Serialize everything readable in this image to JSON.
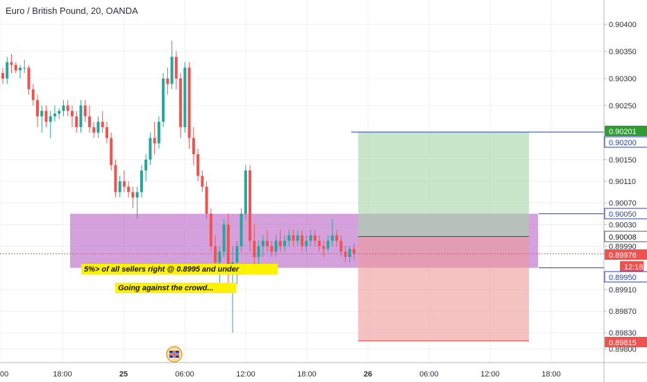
{
  "header": {
    "title": "Euro / British Pound, 20, OANDA"
  },
  "colors": {
    "up": "#26a69a",
    "down": "#ef5350",
    "zone_fill": "#ba68c8",
    "target_fill": "#a5d6a7",
    "stop_fill": "#ef9a9a",
    "level_line": "#1e3fbf",
    "grid": "#eceff3",
    "axis_text": "#2a2e39"
  },
  "chart_data": {
    "type": "candlestick",
    "title": "Euro / British Pound, 20, OANDA",
    "ylim": [
      0.89775,
      0.90445
    ],
    "x_ticks": [
      "00",
      "18:00",
      "25",
      "06:00",
      "12:00",
      "18:00",
      "26",
      "06:00",
      "12:00",
      "18:00"
    ],
    "y_ticks": [
      "0.90400",
      "0.90350",
      "0.90300",
      "0.90250",
      "0.90150",
      "0.90110",
      "0.90070",
      "0.90030",
      "0.89990",
      "0.89910",
      "0.89870",
      "0.89830",
      "0.89800"
    ],
    "price_labels": [
      {
        "text": "0.90201",
        "style": "green"
      },
      {
        "text": "0.90200",
        "style": "blue"
      },
      {
        "text": "0.90050",
        "style": "blue"
      },
      {
        "text": "0.90008",
        "style": "dark"
      },
      {
        "text": "0.89976",
        "style": "red"
      },
      {
        "text": "12:18",
        "style": "redtime"
      },
      {
        "text": "0.89950",
        "style": "blue"
      },
      {
        "text": "0.89815",
        "style": "red"
      }
    ],
    "price_label_values": [
      0.90201,
      0.902,
      0.9005,
      0.90008,
      0.89976,
      0.8995,
      0.89815
    ],
    "zone": {
      "low": 0.8995,
      "high": 0.9005,
      "label": "5%> of all sellers right @ 0.8995 and under"
    },
    "note": "Going against the crowd...",
    "position": {
      "entry": 0.90008,
      "target": 0.90201,
      "stop": 0.89815
    },
    "horizontal_levels": [
      0.90201,
      0.9005,
      0.8995
    ],
    "current_price": 0.89976,
    "candles": [
      [
        0.9031,
        0.9032,
        0.9029,
        0.903
      ],
      [
        0.903,
        0.9034,
        0.9029,
        0.9033
      ],
      [
        0.9033,
        0.90345,
        0.9031,
        0.90325
      ],
      [
        0.90325,
        0.9033,
        0.9031,
        0.90315
      ],
      [
        0.90315,
        0.90325,
        0.903,
        0.9032
      ],
      [
        0.9032,
        0.90335,
        0.9031,
        0.9032
      ],
      [
        0.9032,
        0.90325,
        0.9027,
        0.9028
      ],
      [
        0.9028,
        0.9029,
        0.9025,
        0.9026
      ],
      [
        0.9026,
        0.9027,
        0.9021,
        0.9023
      ],
      [
        0.9023,
        0.9025,
        0.902,
        0.9024
      ],
      [
        0.9024,
        0.9025,
        0.9021,
        0.9022
      ],
      [
        0.9022,
        0.9024,
        0.9019,
        0.9023
      ],
      [
        0.9023,
        0.9025,
        0.9022,
        0.90235
      ],
      [
        0.90235,
        0.90245,
        0.90225,
        0.9024
      ],
      [
        0.9024,
        0.9026,
        0.9023,
        0.9025
      ],
      [
        0.9025,
        0.9026,
        0.9023,
        0.9024
      ],
      [
        0.9024,
        0.9025,
        0.9021,
        0.9023
      ],
      [
        0.9023,
        0.9024,
        0.902,
        0.9021
      ],
      [
        0.9021,
        0.9026,
        0.902,
        0.9025
      ],
      [
        0.9025,
        0.9026,
        0.9022,
        0.9023
      ],
      [
        0.9023,
        0.9025,
        0.902,
        0.9021
      ],
      [
        0.9021,
        0.9022,
        0.9019,
        0.902
      ],
      [
        0.902,
        0.9023,
        0.9019,
        0.9022
      ],
      [
        0.9022,
        0.9024,
        0.902,
        0.9021
      ],
      [
        0.9021,
        0.9022,
        0.9018,
        0.9019
      ],
      [
        0.9019,
        0.902,
        0.9013,
        0.9014
      ],
      [
        0.9014,
        0.9015,
        0.9008,
        0.9009
      ],
      [
        0.9009,
        0.9012,
        0.9008,
        0.9011
      ],
      [
        0.9011,
        0.9013,
        0.9009,
        0.901
      ],
      [
        0.901,
        0.9011,
        0.9008,
        0.9009
      ],
      [
        0.9009,
        0.901,
        0.9006,
        0.9008
      ],
      [
        0.9008,
        0.901,
        0.9004,
        0.9009
      ],
      [
        0.9009,
        0.9014,
        0.9008,
        0.9013
      ],
      [
        0.9013,
        0.9016,
        0.9011,
        0.9015
      ],
      [
        0.9015,
        0.902,
        0.9014,
        0.9019
      ],
      [
        0.9019,
        0.9022,
        0.9016,
        0.9018
      ],
      [
        0.9018,
        0.9023,
        0.9017,
        0.9022
      ],
      [
        0.9022,
        0.9031,
        0.9021,
        0.903
      ],
      [
        0.903,
        0.9032,
        0.9027,
        0.9029
      ],
      [
        0.9029,
        0.9037,
        0.9028,
        0.9034
      ],
      [
        0.9034,
        0.9035,
        0.9028,
        0.903
      ],
      [
        0.903,
        0.9031,
        0.9019,
        0.9021
      ],
      [
        0.9021,
        0.9033,
        0.902,
        0.9032
      ],
      [
        0.9032,
        0.9033,
        0.9017,
        0.9019
      ],
      [
        0.9019,
        0.9021,
        0.9014,
        0.9016
      ],
      [
        0.9016,
        0.9017,
        0.9011,
        0.9012
      ],
      [
        0.9012,
        0.9013,
        0.9009,
        0.901
      ],
      [
        0.901,
        0.9011,
        0.9004,
        0.9005
      ],
      [
        0.9005,
        0.9006,
        0.8998,
        0.8999
      ],
      [
        0.8999,
        0.9001,
        0.8994,
        0.8996
      ],
      [
        0.8996,
        0.8999,
        0.8992,
        0.8998
      ],
      [
        0.8998,
        0.9004,
        0.8997,
        0.9003
      ],
      [
        0.9003,
        0.9005,
        0.8992,
        0.8994
      ],
      [
        0.8994,
        0.8999,
        0.8983,
        0.8996
      ],
      [
        0.8996,
        0.9,
        0.8992,
        0.8999
      ],
      [
        0.8999,
        0.9006,
        0.8998,
        0.9005
      ],
      [
        0.9005,
        0.9014,
        0.9004,
        0.9013
      ],
      [
        0.9013,
        0.9014,
        0.8998,
        0.9
      ],
      [
        0.9,
        0.9003,
        0.8995,
        0.8997
      ],
      [
        0.8997,
        0.9,
        0.8994,
        0.8999
      ],
      [
        0.8999,
        0.9001,
        0.8997,
        0.9
      ],
      [
        0.9,
        0.9002,
        0.8998,
        0.8999
      ],
      [
        0.8999,
        0.9,
        0.8997,
        0.8998
      ],
      [
        0.8998,
        0.9001,
        0.8997,
        0.9
      ],
      [
        0.9,
        0.9002,
        0.8998,
        0.8999
      ],
      [
        0.8999,
        0.9001,
        0.8998,
        0.9
      ],
      [
        0.9,
        0.9002,
        0.8999,
        0.9001
      ],
      [
        0.9001,
        0.9002,
        0.8999,
        0.9
      ],
      [
        0.9,
        0.9002,
        0.8999,
        0.9001
      ],
      [
        0.9001,
        0.9002,
        0.8998,
        0.8999
      ],
      [
        0.8999,
        0.9001,
        0.8998,
        0.9
      ],
      [
        0.9,
        0.9002,
        0.8999,
        0.9001
      ],
      [
        0.9001,
        0.9002,
        0.8999,
        0.9
      ],
      [
        0.9,
        0.9001,
        0.8998,
        0.8999
      ],
      [
        0.8999,
        0.9,
        0.8997,
        0.89985
      ],
      [
        0.89985,
        0.9001,
        0.8998,
        0.9
      ],
      [
        0.9,
        0.9004,
        0.8999,
        0.9001
      ],
      [
        0.9001,
        0.9002,
        0.8999,
        0.9
      ],
      [
        0.9,
        0.9001,
        0.8997,
        0.8998
      ],
      [
        0.8998,
        0.8999,
        0.8996,
        0.8997
      ],
      [
        0.8997,
        0.8999,
        0.8996,
        0.89985
      ],
      [
        0.89985,
        0.89995,
        0.89965,
        0.89976
      ]
    ]
  }
}
